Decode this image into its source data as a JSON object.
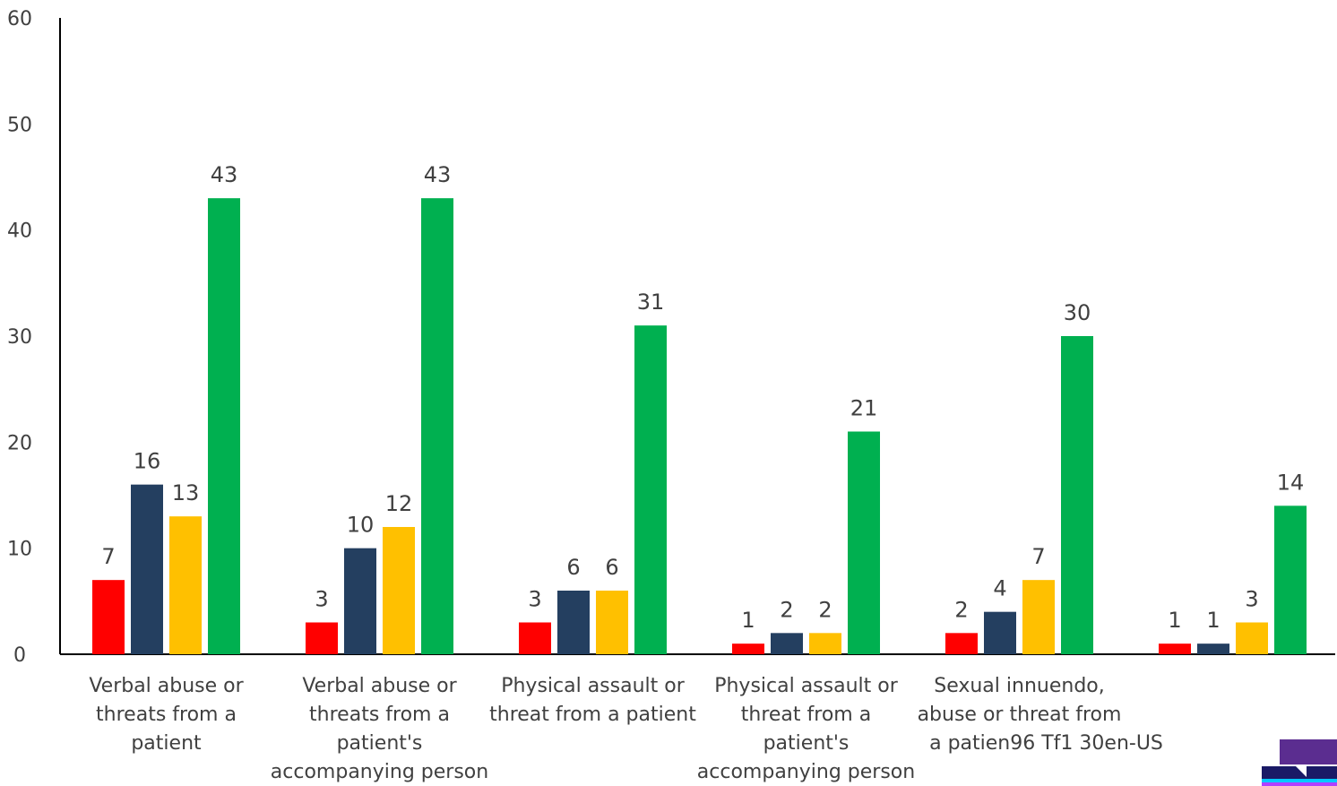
{
  "chart_data": {
    "type": "bar",
    "title": "",
    "xlabel": "",
    "ylabel": "",
    "ylim": [
      0,
      60
    ],
    "yticks": [
      0,
      10,
      20,
      30,
      40,
      50,
      60
    ],
    "grid": false,
    "categories": [
      [
        "Verbal abuse or",
        "threats from a",
        "patient"
      ],
      [
        "Verbal abuse or",
        "threats from a",
        "patient's",
        "accompanying person"
      ],
      [
        "Physical assault or",
        "threat from a patient"
      ],
      [
        "Physical assault or",
        "threat from a",
        "patient's",
        "accompanying person"
      ],
      [
        "Sexual innuendo,",
        "abuse or threat from",
        "a patien96 Tf1 30en-US"
      ],
      []
    ],
    "series": [
      {
        "color": "#ff0000",
        "values": [
          7,
          3,
          3,
          1,
          2,
          1
        ]
      },
      {
        "color": "#243f60",
        "values": [
          16,
          10,
          6,
          2,
          4,
          1
        ]
      },
      {
        "color": "#ffc000",
        "values": [
          13,
          12,
          6,
          2,
          7,
          3
        ]
      },
      {
        "color": "#00b050",
        "values": [
          43,
          43,
          31,
          21,
          30,
          14
        ]
      }
    ]
  },
  "corner_logo": {
    "colors": [
      "#5b2d90",
      "#1a1a66",
      "#00c8ff"
    ]
  }
}
